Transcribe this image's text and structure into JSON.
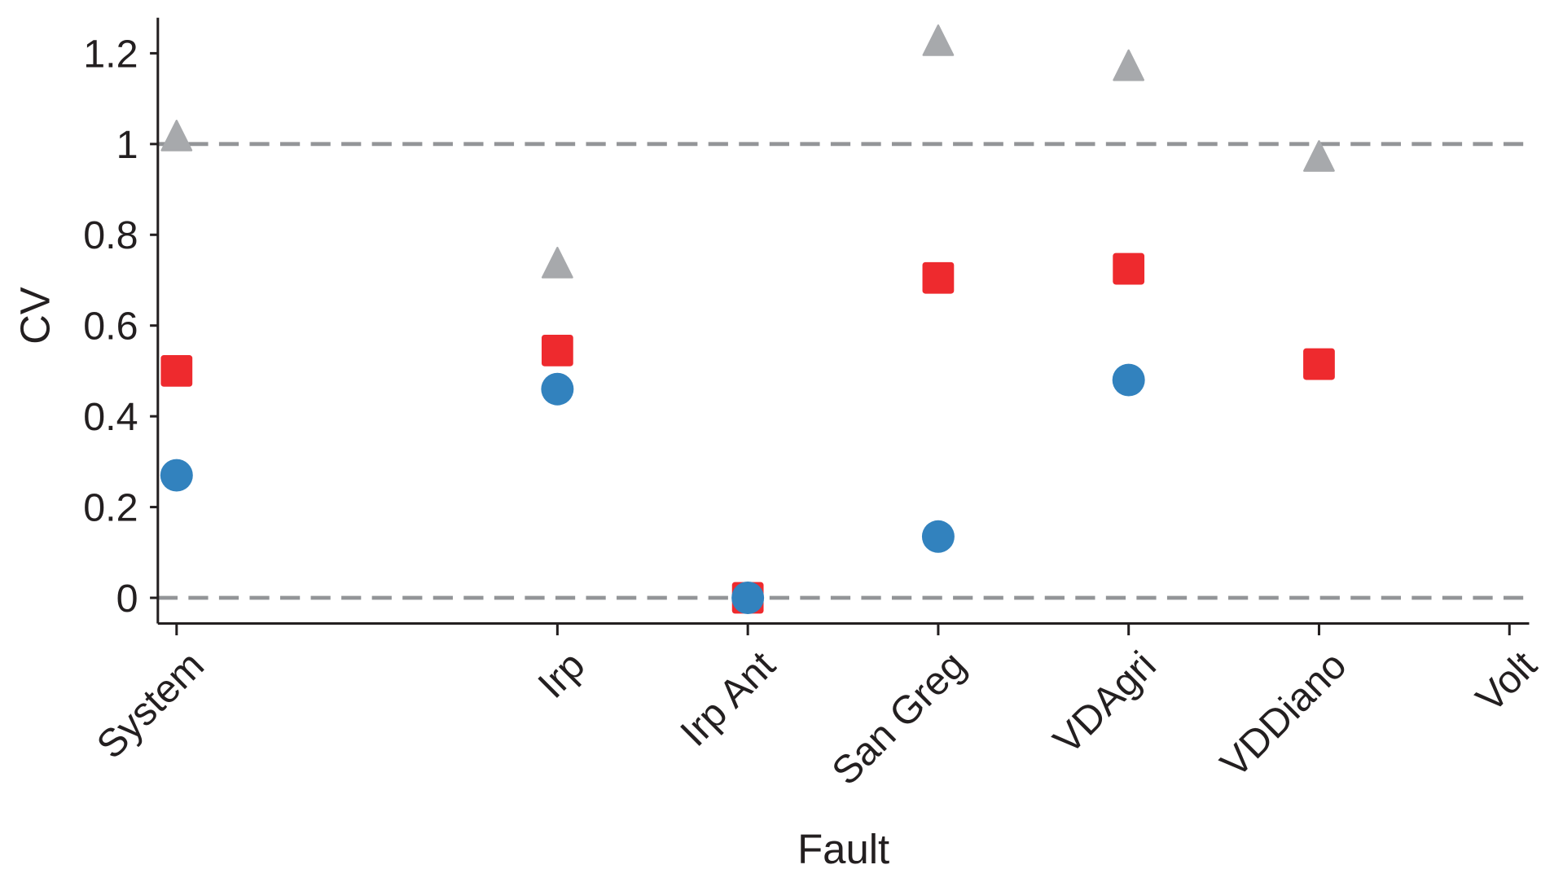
{
  "chart_data": {
    "type": "scatter",
    "title": "",
    "xlabel": "Fault",
    "ylabel": "CV",
    "ylim": [
      -0.057,
      1.28
    ],
    "yticks": [
      0,
      0.2,
      0.4,
      0.6,
      0.8,
      1,
      1.2
    ],
    "ytick_labels": [
      "0",
      "0.2",
      "0.4",
      "0.6",
      "0.8",
      "1",
      "1.2"
    ],
    "categories": [
      "System",
      "Irp",
      "Irp Ant",
      "San Greg",
      "VDAgri",
      "VDDiano",
      "Volt"
    ],
    "category_positions": [
      0,
      2,
      3,
      4,
      5,
      6,
      7
    ],
    "reference_lines": [
      0,
      1
    ],
    "grid": false,
    "legend": "none",
    "series": [
      {
        "marker": "triangle",
        "color": "#a7a9ac",
        "values": [
          1.01,
          0.73,
          null,
          1.22,
          1.165,
          0.965,
          null
        ]
      },
      {
        "marker": "square",
        "color": "#ee2a2e",
        "values": [
          0.5,
          0.545,
          0.0,
          0.705,
          0.725,
          0.515,
          null
        ]
      },
      {
        "marker": "circle",
        "color": "#3282be",
        "values": [
          0.27,
          0.46,
          0.0,
          0.135,
          0.48,
          null,
          null
        ]
      }
    ],
    "colors": {
      "axis": "#231f20",
      "reference_line": "#939598"
    }
  }
}
